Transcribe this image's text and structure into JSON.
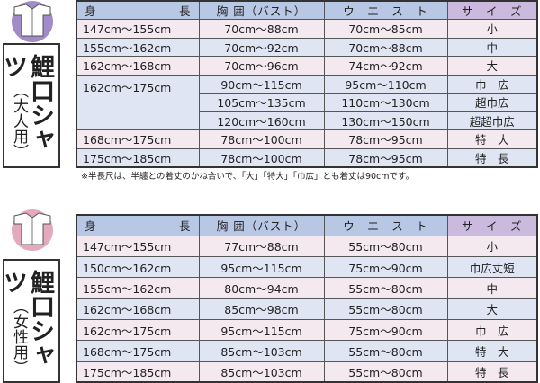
{
  "colors": {
    "header": "#b8c7e4",
    "size_header": "#cbb9de",
    "row_pink": "#f4e9ef",
    "row_blue": "#dfe5f2",
    "adult_icon": "#a08cc8",
    "women_icon": "#e4a9bf"
  },
  "headers": {
    "height_a": "身",
    "height_b": "長",
    "chest": "胸 囲（バスト）",
    "waist": "ウ　エ　ス　ト",
    "size": "サ　イ　ズ"
  },
  "adult": {
    "icon": "shirt-icon",
    "title": "鯉口シャツ",
    "subtitle": "（大人用）",
    "rows": [
      {
        "height": "147cm〜155cm",
        "chest": "70cm〜88cm",
        "waist": "70cm〜85cm",
        "size": "小"
      },
      {
        "height": "155cm〜162cm",
        "chest": "70cm〜92cm",
        "waist": "70cm〜88cm",
        "size": "中"
      },
      {
        "height": "162cm〜168cm",
        "chest": "70cm〜96cm",
        "waist": "74cm〜92cm",
        "size": "大"
      },
      {
        "height": "162cm〜175cm",
        "chest": "90cm〜115cm",
        "waist": "95cm〜110cm",
        "size": "巾　広"
      },
      {
        "chest": "105cm〜135cm",
        "waist": "110cm〜130cm",
        "size": "超巾広"
      },
      {
        "chest": "120cm〜160cm",
        "waist": "130cm〜150cm",
        "size": "超超巾広"
      },
      {
        "height": "168cm〜175cm",
        "chest": "78cm〜100cm",
        "waist": "78cm〜95cm",
        "size": "特　大"
      },
      {
        "height": "175cm〜185cm",
        "chest": "78cm〜100cm",
        "waist": "78cm〜95cm",
        "size": "特　長"
      }
    ],
    "note": "※半長尺は、半纏との着丈のかね合いで、「大」「特大」「巾広」とも着丈は90cmです。"
  },
  "women": {
    "icon": "shirt-icon",
    "title": "鯉口シャツ",
    "subtitle": "（女性用）",
    "rows": [
      {
        "height": "147cm〜155cm",
        "chest": "77cm〜88cm",
        "waist": "55cm〜80cm",
        "size": "小"
      },
      {
        "height": "150cm〜162cm",
        "chest": "95cm〜115cm",
        "waist": "75cm〜90cm",
        "size": "巾広丈短"
      },
      {
        "height": "155cm〜162cm",
        "chest": "80cm〜94cm",
        "waist": "55cm〜80cm",
        "size": "中"
      },
      {
        "height": "162cm〜168cm",
        "chest": "85cm〜98cm",
        "waist": "55cm〜80cm",
        "size": "大"
      },
      {
        "height": "162cm〜175cm",
        "chest": "95cm〜115cm",
        "waist": "75cm〜90cm",
        "size": "巾　広"
      },
      {
        "height": "168cm〜175cm",
        "chest": "85cm〜103cm",
        "waist": "55cm〜80cm",
        "size": "特　大"
      },
      {
        "height": "175cm〜185cm",
        "chest": "85cm〜103cm",
        "waist": "55cm〜80cm",
        "size": "特　長"
      }
    ]
  }
}
